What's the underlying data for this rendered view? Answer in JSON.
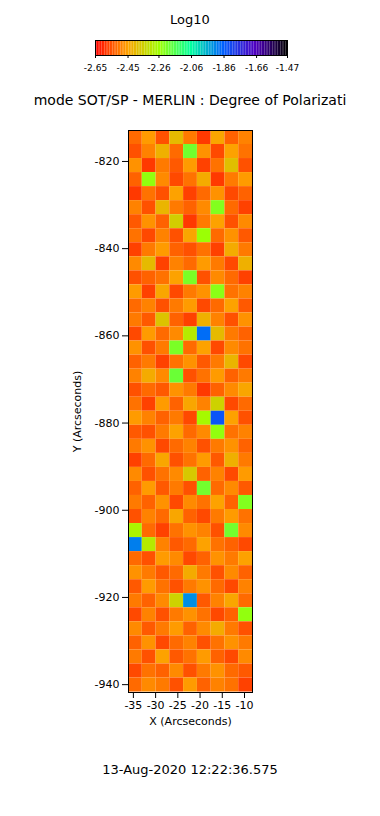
{
  "chart_data": {
    "type": "heatmap",
    "title": "mode SOT/SP - MERLIN : Degree of Polarizati",
    "date": "13-Aug-2020 12:22:36.575",
    "x_label": "X (Arcseconds)",
    "y_label": "Y (Arcseconds)",
    "xlim": [
      -36.1,
      -8.2
    ],
    "ylim": [
      -941.8,
      -812.9
    ],
    "xticks": [
      -35,
      -30,
      -25,
      -20,
      -15,
      -10
    ],
    "yticks": [
      -820,
      -840,
      -860,
      -880,
      -900,
      -920,
      -940
    ],
    "colorbar": {
      "label": "Log10",
      "range": [
        -2.65,
        -1.47
      ],
      "ticks": [
        -2.65,
        -2.45,
        -2.26,
        -2.06,
        -1.86,
        -1.66,
        -1.47
      ]
    },
    "x": [
      -34.55,
      -31.45,
      -28.35,
      -25.25,
      -22.15,
      -19.05,
      -15.95,
      -12.85,
      -9.75
    ],
    "y": [
      -814.5,
      -817.72,
      -820.94,
      -824.16,
      -827.38,
      -830.6,
      -833.82,
      -837.04,
      -840.26,
      -843.48,
      -846.7,
      -849.92,
      -853.14,
      -856.36,
      -859.58,
      -862.8,
      -866.02,
      -869.24,
      -872.46,
      -875.68,
      -878.9,
      -882.12,
      -885.34,
      -888.56,
      -891.78,
      -895.0,
      -898.22,
      -901.44,
      -904.66,
      -907.88,
      -911.1,
      -914.32,
      -917.54,
      -920.76,
      -923.98,
      -927.2,
      -930.42,
      -933.64,
      -936.86,
      -940.08
    ],
    "values": [
      [
        -2.52,
        -2.46,
        -2.55,
        -2.4,
        -2.5,
        -2.58,
        -2.44,
        -2.53,
        -2.49
      ],
      [
        -2.55,
        -2.49,
        -2.42,
        -2.52,
        -2.2,
        -2.47,
        -2.56,
        -2.45,
        -2.51
      ],
      [
        -2.47,
        -2.58,
        -2.5,
        -2.54,
        -2.46,
        -2.57,
        -2.51,
        -2.39,
        -2.55
      ],
      [
        -2.53,
        -2.24,
        -2.48,
        -2.56,
        -2.51,
        -2.43,
        -2.58,
        -2.5,
        -2.46
      ],
      [
        -2.58,
        -2.51,
        -2.55,
        -2.45,
        -2.57,
        -2.52,
        -2.47,
        -2.56,
        -2.53
      ],
      [
        -2.49,
        -2.55,
        -2.41,
        -2.5,
        -2.53,
        -2.48,
        -2.22,
        -2.52,
        -2.57
      ],
      [
        -2.54,
        -2.47,
        -2.53,
        -2.36,
        -2.58,
        -2.5,
        -2.45,
        -2.55,
        -2.48
      ],
      [
        -2.51,
        -2.56,
        -2.49,
        -2.55,
        -2.44,
        -2.25,
        -2.52,
        -2.47,
        -2.54
      ],
      [
        -2.57,
        -2.5,
        -2.46,
        -2.53,
        -2.55,
        -2.51,
        -2.57,
        -2.43,
        -2.5
      ],
      [
        -2.48,
        -2.4,
        -2.57,
        -2.49,
        -2.52,
        -2.46,
        -2.5,
        -2.56,
        -2.42
      ],
      [
        -2.55,
        -2.53,
        -2.51,
        -2.45,
        -2.21,
        -2.55,
        -2.48,
        -2.52,
        -2.57
      ],
      [
        -2.46,
        -2.57,
        -2.44,
        -2.56,
        -2.5,
        -2.47,
        -2.23,
        -2.51,
        -2.49
      ],
      [
        -2.52,
        -2.49,
        -2.55,
        -2.5,
        -2.46,
        -2.56,
        -2.52,
        -2.45,
        -2.54
      ],
      [
        -2.5,
        -2.54,
        -2.38,
        -2.53,
        -2.57,
        -2.42,
        -2.49,
        -2.55,
        -2.47
      ],
      [
        -2.56,
        -2.46,
        -2.52,
        -2.48,
        -2.3,
        -1.88,
        -2.4,
        -2.5,
        -2.53
      ],
      [
        -2.47,
        -2.55,
        -2.5,
        -2.21,
        -2.52,
        -2.45,
        -2.56,
        -2.48,
        -2.51
      ],
      [
        -2.53,
        -2.5,
        -2.57,
        -2.51,
        -2.47,
        -2.54,
        -2.5,
        -2.41,
        -2.56
      ],
      [
        -2.49,
        -2.43,
        -2.48,
        -2.19,
        -2.55,
        -2.51,
        -2.46,
        -2.53,
        -2.5
      ],
      [
        -2.55,
        -2.52,
        -2.54,
        -2.47,
        -2.5,
        -2.58,
        -2.53,
        -2.48,
        -2.44
      ],
      [
        -2.51,
        -2.57,
        -2.46,
        -2.53,
        -2.44,
        -2.49,
        -2.35,
        -2.56,
        -2.52
      ],
      [
        -2.46,
        -2.49,
        -2.53,
        -2.5,
        -2.56,
        -2.27,
        -1.84,
        -2.45,
        -2.55
      ],
      [
        -2.54,
        -2.55,
        -2.5,
        -2.45,
        -2.52,
        -2.48,
        -2.24,
        -2.51,
        -2.49
      ],
      [
        -2.5,
        -2.47,
        -2.56,
        -2.52,
        -2.49,
        -2.55,
        -2.5,
        -2.47,
        -2.53
      ],
      [
        -2.57,
        -2.52,
        -2.44,
        -2.55,
        -2.51,
        -2.46,
        -2.54,
        -2.42,
        -2.5
      ],
      [
        -2.48,
        -2.55,
        -2.51,
        -2.48,
        -2.37,
        -2.53,
        -2.49,
        -2.56,
        -2.46
      ],
      [
        -2.53,
        -2.46,
        -2.54,
        -2.5,
        -2.55,
        -2.2,
        -2.52,
        -2.48,
        -2.54
      ],
      [
        -2.5,
        -2.53,
        -2.47,
        -2.56,
        -2.48,
        -2.51,
        -2.45,
        -2.53,
        -2.22
      ],
      [
        -2.55,
        -2.49,
        -2.52,
        -2.44,
        -2.53,
        -2.56,
        -2.5,
        -2.46,
        -2.51
      ],
      [
        -2.28,
        -2.52,
        -2.57,
        -2.51,
        -2.47,
        -2.49,
        -2.55,
        -2.2,
        -2.48
      ],
      [
        -1.9,
        -2.3,
        -2.49,
        -2.54,
        -2.52,
        -2.45,
        -2.51,
        -2.53,
        -2.56
      ],
      [
        -2.52,
        -2.55,
        -2.46,
        -2.48,
        -2.56,
        -2.53,
        -2.47,
        -2.5,
        -2.45
      ],
      [
        -2.47,
        -2.5,
        -2.54,
        -2.52,
        -2.43,
        -2.5,
        -2.55,
        -2.48,
        -2.53
      ],
      [
        -2.54,
        -2.46,
        -2.51,
        -2.55,
        -2.5,
        -2.47,
        -2.52,
        -2.56,
        -2.49
      ],
      [
        -2.5,
        -2.53,
        -2.48,
        -2.35,
        -1.92,
        -2.54,
        -2.49,
        -2.44,
        -2.52
      ],
      [
        -2.56,
        -2.49,
        -2.55,
        -2.5,
        -2.47,
        -2.51,
        -2.56,
        -2.53,
        -2.24
      ],
      [
        -2.48,
        -2.54,
        -2.5,
        -2.46,
        -2.53,
        -2.48,
        -2.43,
        -2.5,
        -2.55
      ],
      [
        -2.53,
        -2.47,
        -2.56,
        -2.52,
        -2.49,
        -2.55,
        -2.51,
        -2.47,
        -2.5
      ],
      [
        -2.5,
        -2.55,
        -2.45,
        -2.54,
        -2.51,
        -2.46,
        -2.53,
        -2.56,
        -2.48
      ],
      [
        -2.56,
        -2.51,
        -2.53,
        -2.48,
        -2.55,
        -2.5,
        -2.47,
        -2.52,
        -2.54
      ],
      [
        -2.52,
        -2.48,
        -2.5,
        -2.55,
        -2.46,
        -2.53,
        -2.49,
        -2.51,
        -2.57
      ]
    ]
  }
}
